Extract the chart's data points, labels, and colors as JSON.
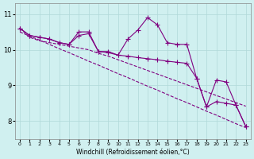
{
  "x": [
    0,
    1,
    2,
    3,
    4,
    5,
    6,
    7,
    8,
    9,
    10,
    11,
    12,
    13,
    14,
    15,
    16,
    17,
    18,
    19,
    20,
    21,
    22,
    23
  ],
  "y_main": [
    10.6,
    10.4,
    10.35,
    10.3,
    10.2,
    10.15,
    10.5,
    10.5,
    9.95,
    9.95,
    9.85,
    10.3,
    10.55,
    10.9,
    10.7,
    10.2,
    10.15,
    10.15,
    9.2,
    8.4,
    9.15,
    9.1,
    8.45,
    7.85
  ],
  "y_line1": [
    10.6,
    10.4,
    10.35,
    10.3,
    10.2,
    10.15,
    10.4,
    10.45,
    9.95,
    9.92,
    9.85,
    9.82,
    9.78,
    9.75,
    9.72,
    9.68,
    9.65,
    9.62,
    9.2,
    8.4,
    8.55,
    8.5,
    8.45,
    7.85
  ],
  "y_trend1": [
    10.6,
    10.35,
    10.25,
    10.2,
    10.15,
    10.1,
    10.05,
    10.0,
    9.9,
    9.82,
    9.72,
    9.62,
    9.52,
    9.42,
    9.32,
    9.22,
    9.12,
    9.02,
    8.92,
    8.82,
    8.72,
    8.62,
    8.52,
    8.42
  ],
  "y_trend2": [
    10.5,
    10.38,
    10.27,
    10.15,
    10.03,
    9.92,
    9.8,
    9.68,
    9.57,
    9.45,
    9.33,
    9.22,
    9.1,
    8.98,
    8.87,
    8.75,
    8.63,
    8.52,
    8.4,
    8.28,
    8.17,
    8.05,
    7.93,
    7.82
  ],
  "color": "#800080",
  "bg_color": "#d0f0f0",
  "xlabel": "Windchill (Refroidissement éolien,°C)",
  "yticks": [
    8,
    9,
    10,
    11
  ],
  "ylim": [
    7.5,
    11.3
  ],
  "xlim": [
    -0.5,
    23.5
  ]
}
